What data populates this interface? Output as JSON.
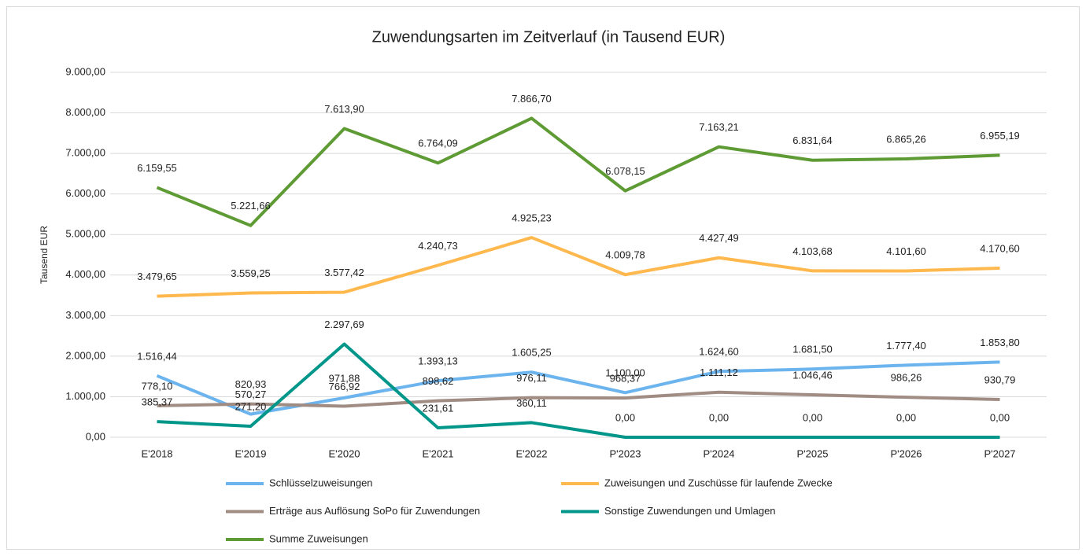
{
  "chart_data": {
    "type": "line",
    "title": "Zuwendungsarten im Zeitverlauf (in Tausend EUR)",
    "y_label": "Tausend EUR",
    "categories": [
      "E'2018",
      "E'2019",
      "E'2020",
      "E'2021",
      "E'2022",
      "P'2023",
      "P'2024",
      "P'2025",
      "P'2026",
      "P'2027"
    ],
    "ylim": [
      0,
      9000
    ],
    "yticks": [
      {
        "value": 0,
        "label": "0,00"
      },
      {
        "value": 1000,
        "label": "1.000,00"
      },
      {
        "value": 2000,
        "label": "2.000,00"
      },
      {
        "value": 3000,
        "label": "3.000,00"
      },
      {
        "value": 4000,
        "label": "4.000,00"
      },
      {
        "value": 5000,
        "label": "5.000,00"
      },
      {
        "value": 6000,
        "label": "6.000,00"
      },
      {
        "value": 7000,
        "label": "7.000,00"
      },
      {
        "value": 8000,
        "label": "8.000,00"
      },
      {
        "value": 9000,
        "label": "9.000,00"
      }
    ],
    "grid": true,
    "legend": "bottom",
    "series": [
      {
        "name": "Schlüsselzuweisungen",
        "color": "#6cb4ee",
        "values": [
          1516.44,
          570.27,
          971.88,
          1393.13,
          1605.25,
          1100.0,
          1624.6,
          1681.5,
          1777.4,
          1853.8
        ],
        "value_labels": [
          "1.516,44",
          "570,27",
          "971,88",
          "1.393,13",
          "1.605,25",
          "1.100,00",
          "1.624,60",
          "1.681,50",
          "1.777,40",
          "1.853,80"
        ]
      },
      {
        "name": "Zuweisungen und Zuschüsse für laufende Zwecke",
        "color": "#ffb84d",
        "values": [
          3479.65,
          3559.25,
          3577.42,
          4240.73,
          4925.23,
          4009.78,
          4427.49,
          4103.68,
          4101.6,
          4170.6
        ],
        "value_labels": [
          "3.479,65",
          "3.559,25",
          "3.577,42",
          "4.240,73",
          "4.925,23",
          "4.009,78",
          "4.427,49",
          "4.103,68",
          "4.101,60",
          "4.170,60"
        ]
      },
      {
        "name": "Erträge aus Auflösung SoPo für Zuwendungen",
        "color": "#a08c82",
        "values": [
          778.1,
          820.93,
          766.92,
          898.62,
          976.11,
          968.37,
          1111.12,
          1046.46,
          986.26,
          930.79
        ],
        "value_labels": [
          "778,10",
          "820,93",
          "766,92",
          "898,62",
          "976,11",
          "968,37",
          "1.111,12",
          "1.046,46",
          "986,26",
          "930,79"
        ]
      },
      {
        "name": "Sonstige Zuwendungen und Umlagen",
        "color": "#00968a",
        "values": [
          385.37,
          271.2,
          2297.69,
          231.61,
          360.11,
          0,
          0,
          0,
          0,
          0
        ],
        "value_labels": [
          "385,37",
          "271,20",
          "2.297,69",
          "231,61",
          "360,11",
          "0,00",
          "0,00",
          "0,00",
          "0,00",
          "0,00"
        ]
      },
      {
        "name": "Summe Zuweisungen",
        "color": "#5e9b34",
        "values": [
          6159.55,
          5221.66,
          7613.9,
          6764.09,
          7866.7,
          6078.15,
          7163.21,
          6831.64,
          6865.26,
          6955.19
        ],
        "value_labels": [
          "6.159,55",
          "5.221,66",
          "7.613,90",
          "6.764,09",
          "7.866,70",
          "6.078,15",
          "7.163,21",
          "6.831,64",
          "6.865,26",
          "6.955,19"
        ]
      }
    ]
  }
}
